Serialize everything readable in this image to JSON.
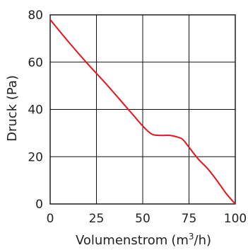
{
  "chart_data": {
    "type": "line",
    "xlabel": "Volumenstrom",
    "xlabel_unit_main": "(m",
    "xlabel_unit_sup": "3",
    "xlabel_unit_tail": "/h)",
    "ylabel": "Druck (Pa)",
    "xlim": [
      0,
      100
    ],
    "ylim": [
      0,
      80
    ],
    "xticks": [
      0,
      25,
      50,
      75,
      100
    ],
    "yticks": [
      0,
      20,
      40,
      60,
      80
    ],
    "xtick_labels": [
      "0",
      "25",
      "50",
      "75",
      "100"
    ],
    "ytick_labels": [
      "0",
      "20",
      "40",
      "60",
      "80"
    ],
    "grid": true,
    "series": [
      {
        "color": "#e8141c",
        "x": [
          0,
          10,
          20,
          30,
          40,
          45,
          50,
          55,
          60,
          65,
          70,
          72,
          75,
          80,
          85,
          90,
          95,
          100
        ],
        "y": [
          78,
          68.5,
          59.5,
          51,
          42,
          37.5,
          33,
          29.5,
          29,
          29,
          28,
          27,
          24,
          19,
          15,
          10,
          4.5,
          0
        ]
      }
    ]
  }
}
